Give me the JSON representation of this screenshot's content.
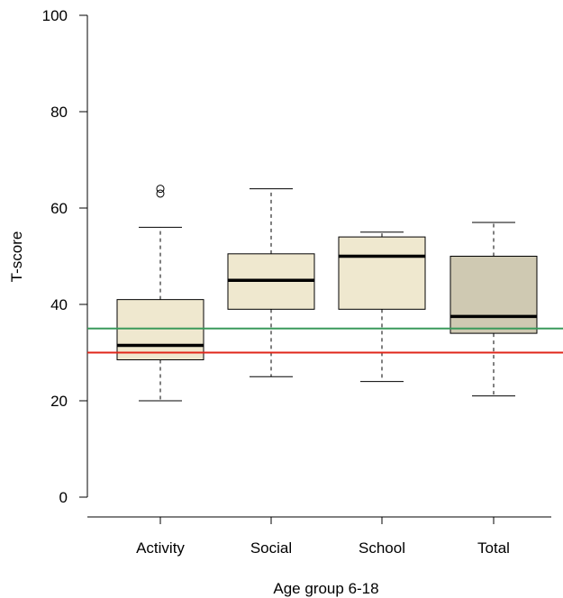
{
  "chart_data": {
    "type": "boxplot",
    "title": "",
    "xlabel": "Age group 6-18",
    "ylabel": "T-score",
    "ylim": [
      0,
      100
    ],
    "yticks": [
      0,
      20,
      40,
      60,
      80,
      100
    ],
    "grid": false,
    "categories": [
      "Activity",
      "Social",
      "School",
      "Total"
    ],
    "boxes": [
      {
        "category": "Activity",
        "whisker_low": 20,
        "q1": 28.5,
        "median": 31.5,
        "q3": 41,
        "whisker_high": 56,
        "outliers": [
          63,
          64
        ],
        "fill": "#efe8cf"
      },
      {
        "category": "Social",
        "whisker_low": 25,
        "q1": 39,
        "median": 45,
        "q3": 50.5,
        "whisker_high": 64,
        "outliers": [],
        "fill": "#efe8cf"
      },
      {
        "category": "School",
        "whisker_low": 24,
        "q1": 39,
        "median": 50,
        "q3": 54,
        "whisker_high": 55,
        "outliers": [],
        "fill": "#efe8cf"
      },
      {
        "category": "Total",
        "whisker_low": 21,
        "q1": 34,
        "median": 37.5,
        "q3": 50,
        "whisker_high": 57,
        "outliers": [],
        "fill": "#cfc9b2"
      }
    ],
    "reference_lines": [
      {
        "y": 35,
        "color": "#3a9a5b"
      },
      {
        "y": 30,
        "color": "#e0261a"
      }
    ]
  }
}
